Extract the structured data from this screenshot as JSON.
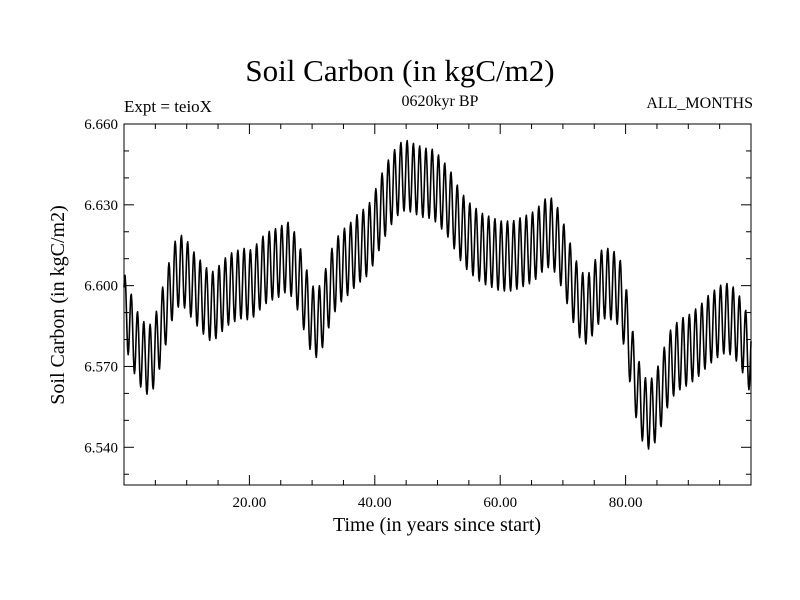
{
  "chart_data": {
    "type": "line",
    "title": "Soil Carbon (in kgC/m2)",
    "subtitle_left": "Expt = teioX",
    "subtitle_center": "0620kyr BP",
    "subtitle_right": "ALL_MONTHS",
    "xlabel": "Time (in years since start)",
    "ylabel": "Soil Carbon (in kgC/m2)",
    "xlim": [
      0,
      100
    ],
    "ylim": [
      6.526,
      6.66
    ],
    "x_ticks": [
      20,
      40,
      60,
      80
    ],
    "x_tick_labels": [
      "20.00",
      "40.00",
      "60.00",
      "80.00"
    ],
    "y_ticks": [
      6.54,
      6.57,
      6.6,
      6.63,
      6.66
    ],
    "y_tick_labels": [
      "6.540",
      "6.570",
      "6.600",
      "6.630",
      "6.660"
    ],
    "series": [
      {
        "name": "Soil Carbon",
        "sampling": "monthly, seasonal cycle amplitude ~0.013 kgC/m2 about the annual mean",
        "x_years": [
          0,
          1,
          2,
          3,
          4,
          5,
          6,
          7,
          8,
          9,
          10,
          11,
          12,
          13,
          14,
          15,
          16,
          17,
          18,
          19,
          20,
          21,
          22,
          23,
          24,
          25,
          26,
          27,
          28,
          29,
          30,
          31,
          32,
          33,
          34,
          35,
          36,
          37,
          38,
          39,
          40,
          41,
          42,
          43,
          44,
          45,
          46,
          47,
          48,
          49,
          50,
          51,
          52,
          53,
          54,
          55,
          56,
          57,
          58,
          59,
          60,
          61,
          62,
          63,
          64,
          65,
          66,
          67,
          68,
          69,
          70,
          71,
          72,
          73,
          74,
          75,
          76,
          77,
          78,
          79,
          80,
          81,
          82,
          83,
          84,
          85,
          86,
          87,
          88,
          89,
          90,
          91,
          92,
          93,
          94,
          95,
          96,
          97,
          98,
          99,
          100
        ],
        "annual_mean": [
          6.592,
          6.585,
          6.578,
          6.574,
          6.572,
          6.576,
          6.585,
          6.594,
          6.603,
          6.606,
          6.604,
          6.6,
          6.597,
          6.594,
          6.592,
          6.594,
          6.597,
          6.599,
          6.6,
          6.601,
          6.6,
          6.602,
          6.605,
          6.607,
          6.608,
          6.609,
          6.611,
          6.608,
          6.602,
          6.594,
          6.587,
          6.586,
          6.592,
          6.6,
          6.605,
          6.608,
          6.61,
          6.613,
          6.615,
          6.617,
          6.622,
          6.628,
          6.633,
          6.637,
          6.64,
          6.641,
          6.64,
          6.639,
          6.638,
          6.638,
          6.636,
          6.633,
          6.63,
          6.625,
          6.621,
          6.618,
          6.616,
          6.614,
          6.613,
          6.612,
          6.611,
          6.611,
          6.611,
          6.612,
          6.613,
          6.614,
          6.616,
          6.619,
          6.62,
          6.617,
          6.611,
          6.604,
          6.597,
          6.592,
          6.591,
          6.596,
          6.6,
          6.601,
          6.6,
          6.598,
          6.588,
          6.572,
          6.56,
          6.553,
          6.552,
          6.556,
          6.563,
          6.57,
          6.573,
          6.575,
          6.576,
          6.578,
          6.58,
          6.583,
          6.585,
          6.587,
          6.588,
          6.587,
          6.584,
          6.579,
          6.572
        ]
      }
    ]
  }
}
